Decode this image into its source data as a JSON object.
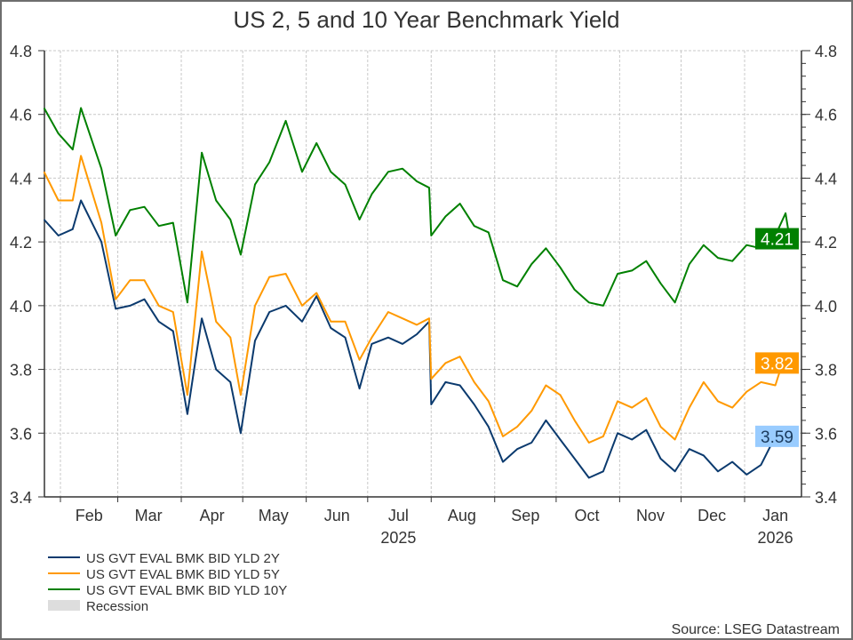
{
  "chart_data": {
    "type": "line",
    "title": "US 2, 5 and 10 Year Benchmark Yield",
    "source": "Source: LSEG Datastream",
    "ylim": [
      3.4,
      4.8
    ],
    "yticks": [
      "3.4",
      "3.6",
      "3.8",
      "4.0",
      "4.2",
      "4.4",
      "4.6",
      "4.8"
    ],
    "y_axes": "left and right",
    "grid": true,
    "legend_placement": "bottom-left",
    "month_boundaries": [
      "2025-02-01",
      "2025-03-01",
      "2025-04-01",
      "2025-05-01",
      "2025-06-01",
      "2025-07-01",
      "2025-08-01",
      "2025-09-01",
      "2025-10-01",
      "2025-11-01",
      "2025-12-01",
      "2026-01-01"
    ],
    "month_labels": [
      {
        "label": "Feb",
        "date": "2025-02-15"
      },
      {
        "label": "Mar",
        "date": "2025-03-16"
      },
      {
        "label": "Apr",
        "date": "2025-04-16"
      },
      {
        "label": "May",
        "date": "2025-05-16"
      },
      {
        "label": "Jun",
        "date": "2025-06-16"
      },
      {
        "label": "Jul",
        "date": "2025-07-16"
      },
      {
        "label": "Aug",
        "date": "2025-08-16"
      },
      {
        "label": "Sep",
        "date": "2025-09-16"
      },
      {
        "label": "Oct",
        "date": "2025-10-16"
      },
      {
        "label": "Nov",
        "date": "2025-11-16"
      },
      {
        "label": "Dec",
        "date": "2025-12-16"
      },
      {
        "label": "Jan",
        "date": "2026-01-16"
      }
    ],
    "year_labels": [
      {
        "label": "2025",
        "date": "2025-07-16"
      },
      {
        "label": "2026",
        "date": "2026-01-16"
      }
    ],
    "x": [
      "2025-01-24",
      "2025-01-31",
      "2025-02-07",
      "2025-02-11",
      "2025-02-21",
      "2025-02-28",
      "2025-03-07",
      "2025-03-14",
      "2025-03-21",
      "2025-03-28",
      "2025-04-04",
      "2025-04-11",
      "2025-04-18",
      "2025-04-25",
      "2025-04-30",
      "2025-05-07",
      "2025-05-14",
      "2025-05-22",
      "2025-05-30",
      "2025-06-06",
      "2025-06-13",
      "2025-06-20",
      "2025-06-27",
      "2025-07-03",
      "2025-07-11",
      "2025-07-18",
      "2025-07-25",
      "2025-07-31",
      "2025-08-01",
      "2025-08-08",
      "2025-08-15",
      "2025-08-22",
      "2025-08-29",
      "2025-09-05",
      "2025-09-12",
      "2025-09-19",
      "2025-09-26",
      "2025-10-03",
      "2025-10-10",
      "2025-10-17",
      "2025-10-24",
      "2025-10-31",
      "2025-11-07",
      "2025-11-14",
      "2025-11-21",
      "2025-11-28",
      "2025-12-05",
      "2025-12-12",
      "2025-12-19",
      "2025-12-26",
      "2026-01-02",
      "2026-01-09",
      "2026-01-16",
      "2026-01-21",
      "2026-01-23"
    ],
    "series": [
      {
        "name": "US GVT EVAL BMK BID YLD 2Y",
        "color": "#0b3a6e",
        "last": "3.59",
        "label_bg": "#99ccff",
        "label_fg": "#1a3a5c",
        "values": [
          4.27,
          4.22,
          4.24,
          4.33,
          4.2,
          3.99,
          4.0,
          4.02,
          3.95,
          3.92,
          3.66,
          3.96,
          3.8,
          3.76,
          3.6,
          3.89,
          3.98,
          4.0,
          3.95,
          4.03,
          3.93,
          3.9,
          3.74,
          3.88,
          3.9,
          3.88,
          3.91,
          3.95,
          3.69,
          3.76,
          3.75,
          3.69,
          3.62,
          3.51,
          3.55,
          3.57,
          3.64,
          3.58,
          3.52,
          3.46,
          3.48,
          3.6,
          3.58,
          3.61,
          3.52,
          3.48,
          3.55,
          3.53,
          3.48,
          3.51,
          3.47,
          3.5,
          3.59,
          3.6,
          3.59
        ]
      },
      {
        "name": "US GVT EVAL BMK BID YLD 5Y",
        "color": "#ff9900",
        "last": "3.82",
        "label_bg": "#ff9900",
        "label_fg": "#ffffff",
        "values": [
          4.42,
          4.33,
          4.33,
          4.47,
          4.26,
          4.02,
          4.08,
          4.08,
          4.0,
          3.98,
          3.72,
          4.17,
          3.95,
          3.9,
          3.72,
          4.0,
          4.09,
          4.1,
          4.0,
          4.04,
          3.95,
          3.95,
          3.83,
          3.9,
          3.98,
          3.96,
          3.94,
          3.96,
          3.77,
          3.82,
          3.84,
          3.76,
          3.7,
          3.59,
          3.62,
          3.67,
          3.75,
          3.72,
          3.64,
          3.57,
          3.59,
          3.7,
          3.68,
          3.71,
          3.62,
          3.58,
          3.68,
          3.76,
          3.7,
          3.68,
          3.73,
          3.76,
          3.75,
          3.85,
          3.82
        ]
      },
      {
        "name": "US GVT EVAL BMK BID YLD 10Y",
        "color": "#008000",
        "last": "4.21",
        "label_bg": "#008000",
        "label_fg": "#ffffff",
        "values": [
          4.62,
          4.54,
          4.49,
          4.62,
          4.43,
          4.22,
          4.3,
          4.31,
          4.25,
          4.26,
          4.01,
          4.48,
          4.33,
          4.27,
          4.16,
          4.38,
          4.45,
          4.58,
          4.42,
          4.51,
          4.42,
          4.38,
          4.27,
          4.35,
          4.42,
          4.43,
          4.39,
          4.37,
          4.22,
          4.28,
          4.32,
          4.25,
          4.23,
          4.08,
          4.06,
          4.13,
          4.18,
          4.12,
          4.05,
          4.01,
          4.0,
          4.1,
          4.11,
          4.14,
          4.07,
          4.01,
          4.13,
          4.19,
          4.15,
          4.14,
          4.19,
          4.18,
          4.22,
          4.29,
          4.21
        ]
      }
    ],
    "legend": [
      {
        "label": "US GVT EVAL BMK BID YLD 2Y",
        "color": "#0b3a6e",
        "kind": "line"
      },
      {
        "label": "US GVT EVAL BMK BID YLD 5Y",
        "color": "#ff9900",
        "kind": "line"
      },
      {
        "label": "US GVT EVAL BMK BID YLD 10Y",
        "color": "#008000",
        "kind": "line"
      },
      {
        "label": "Recession",
        "color": "#dddddd",
        "kind": "box"
      }
    ]
  }
}
